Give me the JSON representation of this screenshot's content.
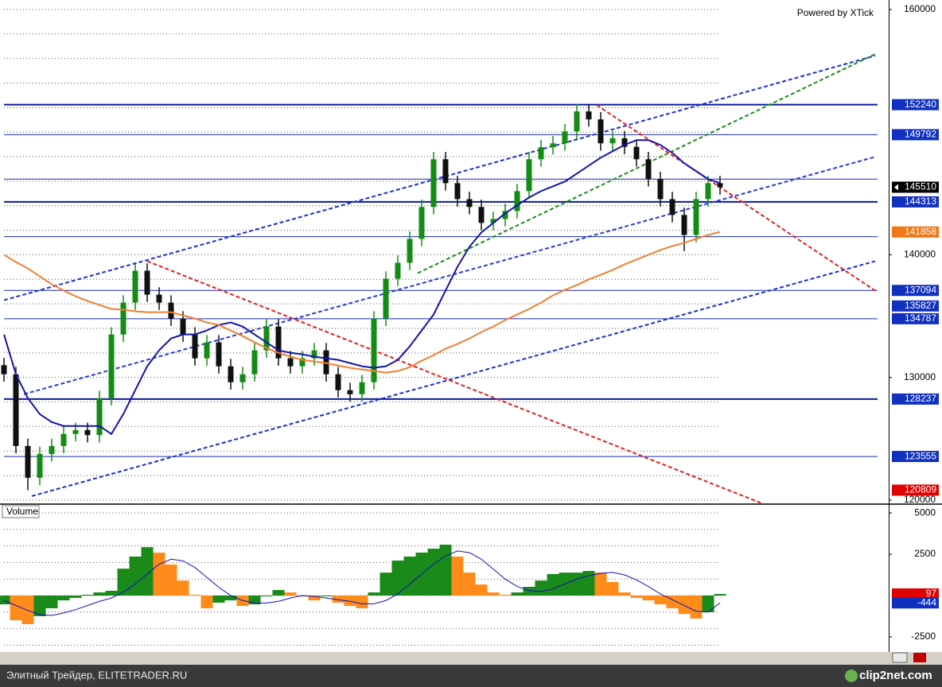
{
  "header": {
    "powered_by": "Powered by XTick"
  },
  "footer": {
    "caption": "Элитный Трейдер, ELITETRADER.RU",
    "logo": "clip2net.com"
  },
  "chart_data": [
    {
      "type": "candlestick",
      "up_color": "#148c14",
      "down_color": "#101010",
      "open": [
        131000,
        130260,
        124410,
        121820,
        123760,
        124410,
        125390,
        125710,
        125300,
        128310,
        133500,
        136100,
        138700,
        136750,
        136100,
        134800,
        133500,
        131560,
        132860,
        130910,
        129610,
        130260,
        132210,
        134150,
        131560,
        130910,
        131560,
        132210,
        130260,
        128960,
        128630,
        129610,
        134800,
        138050,
        139350,
        141300,
        143900,
        147790,
        145840,
        144540,
        143900,
        142600,
        142920,
        143570,
        145190,
        147790,
        148770,
        149090,
        150060,
        151690,
        151040,
        149090,
        149500,
        148800,
        147790,
        146170,
        144540,
        143250,
        141620,
        144540,
        145840
      ],
      "high": [
        131600,
        130860,
        125010,
        124360,
        125010,
        125990,
        126310,
        126310,
        128910,
        134100,
        136700,
        139300,
        139300,
        137350,
        136700,
        135400,
        134100,
        133460,
        133460,
        131510,
        130860,
        132810,
        134750,
        134750,
        132160,
        132160,
        132810,
        132810,
        130860,
        129560,
        130210,
        135400,
        138650,
        139950,
        141900,
        144500,
        148390,
        148390,
        146440,
        145140,
        144500,
        143520,
        144170,
        145790,
        148390,
        149370,
        149690,
        150660,
        152290,
        152290,
        151640,
        150100,
        150100,
        149400,
        148390,
        146770,
        145140,
        143850,
        145140,
        146440,
        146440
      ],
      "low": [
        129660,
        123810,
        120809,
        121220,
        123160,
        123810,
        124790,
        124700,
        124700,
        127710,
        132900,
        135500,
        136150,
        135500,
        134200,
        132900,
        130960,
        130960,
        130310,
        129010,
        129010,
        129660,
        131610,
        130960,
        130310,
        130310,
        130960,
        129660,
        128360,
        128030,
        128030,
        129010,
        134200,
        137450,
        138750,
        140700,
        143300,
        145240,
        143940,
        143300,
        142000,
        142000,
        142320,
        142970,
        144590,
        147190,
        148170,
        148490,
        149460,
        150440,
        148490,
        148490,
        148200,
        147190,
        145570,
        143940,
        142650,
        140300,
        141020,
        143940,
        144910
      ],
      "close": [
        130260,
        124410,
        121820,
        123760,
        124410,
        125390,
        125710,
        125300,
        128310,
        133500,
        136100,
        138700,
        136750,
        136100,
        134800,
        133500,
        131560,
        132860,
        130910,
        129610,
        130260,
        132210,
        134150,
        131560,
        130910,
        131560,
        132210,
        130260,
        128960,
        128630,
        129610,
        134800,
        138050,
        139350,
        141300,
        143900,
        147790,
        145840,
        144540,
        143900,
        142600,
        142920,
        143570,
        145190,
        147790,
        148770,
        149090,
        150060,
        151690,
        151040,
        149090,
        149500,
        148800,
        147790,
        146170,
        144540,
        143250,
        141620,
        144540,
        145840,
        145510
      ],
      "close_label_bg": "#000000",
      "low_label_bg": "#e00000",
      "overlays": [
        {
          "color": "#1414a8",
          "values": [
            133500,
            130260,
            128310,
            127010,
            126360,
            126040,
            126040,
            126040,
            126040,
            125390,
            127010,
            128960,
            130910,
            132210,
            133180,
            133500,
            133500,
            133830,
            134280,
            134480,
            134150,
            133500,
            132860,
            132210,
            132010,
            131880,
            131690,
            131560,
            131430,
            131170,
            130910,
            130780,
            130910,
            131430,
            132530,
            133830,
            135130,
            137080,
            139020,
            140650,
            141820,
            142600,
            143380,
            144030,
            144670,
            145190,
            145580,
            145970,
            146620,
            147270,
            147920,
            148440,
            148960,
            149350,
            149350,
            148960,
            148310,
            147470,
            146820,
            146170,
            145840
          ]
        },
        {
          "color": "#f08030",
          "label_bg": "#f07818",
          "values": [
            140000,
            139410,
            138890,
            138240,
            137600,
            137080,
            136620,
            136230,
            135910,
            135580,
            135520,
            135390,
            135320,
            135320,
            135320,
            135060,
            134800,
            134480,
            134280,
            133830,
            133370,
            132860,
            132400,
            132010,
            131690,
            131430,
            131300,
            131170,
            130970,
            130780,
            130650,
            130520,
            130390,
            130520,
            130840,
            131360,
            131820,
            132340,
            132730,
            133180,
            133700,
            134150,
            134670,
            135130,
            135580,
            136100,
            136690,
            137140,
            137530,
            137990,
            138370,
            138760,
            139220,
            139610,
            140000,
            140390,
            140710,
            140970,
            141300,
            141620,
            141858
          ]
        }
      ],
      "trendlines": [
        {
          "color": "#1a2fd0",
          "x": [
            0,
            73
          ],
          "y": [
            136297,
            156233
          ]
        },
        {
          "color": "#1a2fd0",
          "x": [
            2.33,
            73
          ],
          "y": [
            120322,
            139479
          ]
        },
        {
          "color": "#e02020",
          "x": [
            12,
            63.67
          ],
          "y": [
            139479,
            119672
          ]
        },
        {
          "color": "#e02020",
          "x": [
            49.67,
            73
          ],
          "y": [
            152207,
            137076
          ]
        },
        {
          "color": "#1e8c1e",
          "x": [
            34.67,
            73
          ],
          "y": [
            138505,
            156363
          ]
        },
        {
          "color": "#2a3ad8",
          "x": [
            1.67,
            73
          ],
          "y": [
            128634,
            147986
          ]
        }
      ],
      "levels": [
        {
          "value": 152240,
          "color": "#0a1a9a",
          "width": 2
        },
        {
          "value": 149792,
          "color": "#1a2ab0",
          "width": 1
        },
        {
          "value": 146170,
          "color": "#1a2ab0",
          "width": 1
        },
        {
          "value": 144313,
          "color": "#0a1a9a",
          "width": 2
        },
        {
          "value": 141480,
          "color": "#1a2ab0",
          "width": 1
        },
        {
          "value": 137094,
          "color": "#1a2ab0",
          "width": 1
        },
        {
          "value": 134787,
          "color": "#1a2ab0",
          "width": 1
        },
        {
          "value": 128237,
          "color": "#0a1a9a",
          "width": 2
        },
        {
          "value": 123555,
          "color": "#1a2ab0",
          "width": 1
        }
      ],
      "price_labels": [
        {
          "value": 152240,
          "bg": "#1030c0"
        },
        {
          "value": 149792,
          "bg": "#1030c0"
        },
        {
          "value": 144313,
          "bg": "#1030c0"
        },
        {
          "value": 137094,
          "bg": "#1030c0"
        },
        {
          "value": 135827,
          "bg": "#1030c0"
        },
        {
          "value": 134787,
          "bg": "#1030c0"
        },
        {
          "value": 128237,
          "bg": "#1030c0"
        },
        {
          "value": 123555,
          "bg": "#1030c0"
        }
      ],
      "xlim": [
        0,
        74
      ],
      "ylim": [
        119800,
        160450
      ],
      "yticks": [
        120000,
        130000,
        140000,
        160000
      ],
      "grid_lines": [
        120000,
        122000,
        124000,
        126000,
        128000,
        130000,
        132000,
        134000,
        136000,
        138000,
        140000,
        142000,
        144000,
        146000,
        148000,
        150000,
        152000,
        154000,
        156000,
        158000,
        160000
      ]
    },
    {
      "type": "bar",
      "title": "Volume",
      "up_color": "#1a8a1a",
      "down_color": "#ff8c1a",
      "label_bg": "#e00000",
      "values": [
        -530,
        -1490,
        -1730,
        -1250,
        -770,
        -290,
        -140,
        50,
        190,
        290,
        1630,
        2360,
        2930,
        2600,
        1880,
        910,
        50,
        -770,
        -430,
        -290,
        -630,
        -530,
        -50,
        340,
        190,
        -50,
        -290,
        -50,
        -430,
        -630,
        -770,
        190,
        1390,
        2120,
        2360,
        2600,
        2840,
        3080,
        2360,
        1390,
        670,
        190,
        50,
        190,
        530,
        910,
        1300,
        1390,
        1390,
        1490,
        1390,
        820,
        190,
        -140,
        -290,
        -530,
        -770,
        -1110,
        -1390,
        -1010,
        97
      ],
      "signal": {
        "color": "#1010c0",
        "label_bg": "#1030c0",
        "values": [
          -300,
          -600,
          -900,
          -1150,
          -1200,
          -1050,
          -850,
          -600,
          -350,
          -150,
          200,
          700,
          1300,
          1900,
          2200,
          2100,
          1700,
          1100,
          500,
          0,
          -300,
          -450,
          -450,
          -350,
          -150,
          0,
          -50,
          -150,
          -250,
          -350,
          -500,
          -500,
          -300,
          100,
          700,
          1300,
          1900,
          2400,
          2700,
          2600,
          2200,
          1600,
          1000,
          550,
          300,
          250,
          400,
          700,
          1000,
          1200,
          1350,
          1400,
          1250,
          950,
          550,
          100,
          -250,
          -600,
          -950,
          -1000,
          -444
        ]
      },
      "xlim": [
        0,
        74
      ],
      "ylim": [
        -3320,
        5390
      ],
      "yticks": [
        -2500,
        2500,
        5000
      ],
      "grid_lines": [
        -3000,
        -2000,
        -1000,
        0,
        1000,
        2000,
        3000,
        4000,
        5000
      ]
    }
  ]
}
